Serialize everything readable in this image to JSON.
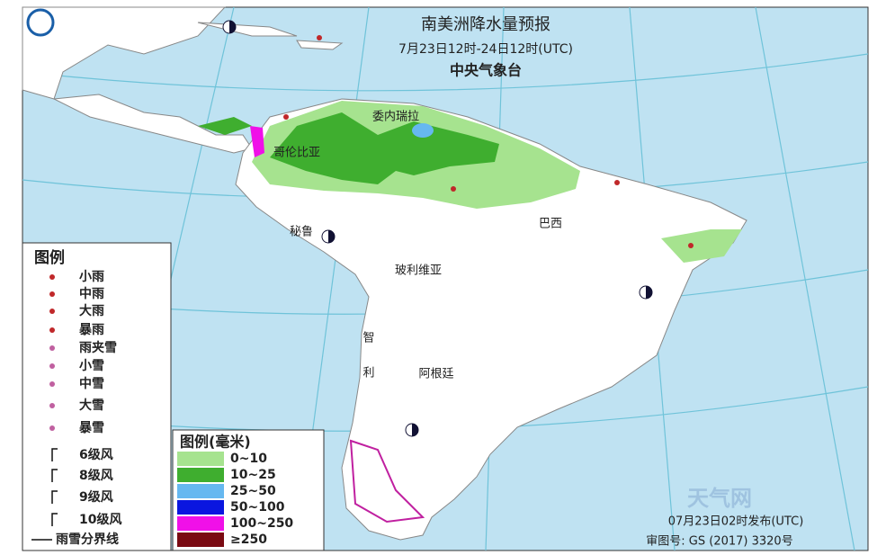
{
  "header": {
    "title": "南美洲降水量预报",
    "subtitle": "7月23日12时-24日12时(UTC)",
    "agency": "中央气象台"
  },
  "countries": [
    {
      "label": "委内瑞拉"
    },
    {
      "label": "哥伦比亚"
    },
    {
      "label": "秘鲁"
    },
    {
      "label": "巴西"
    },
    {
      "label": "玻利维亚"
    },
    {
      "label": "智利"
    },
    {
      "label": "阿根廷"
    }
  ],
  "legend": {
    "title": "图例",
    "items": [
      "小雨",
      "中雨",
      "大雨",
      "暴雨",
      "雨夹雪",
      "小雪",
      "中雪",
      "大雪",
      "暴雪",
      "6级风",
      "8级风",
      "9级风",
      "10级风",
      "雨雪分界线"
    ]
  },
  "precip_legend": {
    "title": "图例(毫米)",
    "items": [
      {
        "label": "0~10",
        "color": "#a6e38f"
      },
      {
        "label": "10~25",
        "color": "#3fae2f"
      },
      {
        "label": "25~50",
        "color": "#66b8f0"
      },
      {
        "label": "50~100",
        "color": "#0a16e0"
      },
      {
        "label": "100~250",
        "color": "#f010e8"
      },
      {
        "label": "≥250",
        "color": "#7a0a12"
      }
    ]
  },
  "footer": {
    "issued": "07月23日02时发布(UTC)",
    "approval": "审图号: GS (2017) 3320号"
  },
  "watermark": "天气网"
}
